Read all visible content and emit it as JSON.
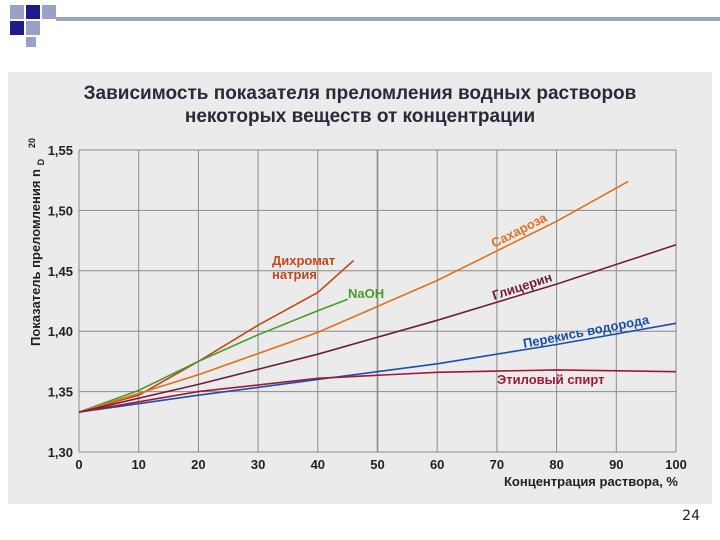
{
  "slide": {
    "page_number": "24"
  },
  "colors": {
    "deco_blue": "#1c1c8c",
    "deco_light": "#9aa0c8",
    "panel": "#ebebeb",
    "grid": "#8a8a8a"
  },
  "chart_data": {
    "type": "line",
    "title_line1": "Зависимость показателя преломления водных растворов",
    "title_line2": "некоторых веществ от концентрации",
    "xlabel": "Концентрация раствора, %",
    "ylabel": "Показатель преломления n",
    "ylabel_sup": "20",
    "ylabel_sub": "D",
    "xlim": [
      0,
      100
    ],
    "ylim": [
      1.3,
      1.55
    ],
    "xticks": [
      "0",
      "10",
      "20",
      "30",
      "40",
      "50",
      "60",
      "70",
      "80",
      "90",
      "100"
    ],
    "yticks": [
      "1,30",
      "1,35",
      "1,40",
      "1,45",
      "1,50",
      "1,55"
    ],
    "grid": true,
    "series": [
      {
        "name": "Дихромат натрия",
        "label_lines": [
          "Дихромат",
          "натрия"
        ],
        "color": "#c2461c",
        "points": [
          [
            0,
            1.333
          ],
          [
            10,
            1.347
          ],
          [
            20,
            1.375
          ],
          [
            30,
            1.405
          ],
          [
            40,
            1.432
          ],
          [
            46,
            1.4585
          ]
        ]
      },
      {
        "name": "NaOH",
        "label_lines": [
          "NaOH"
        ],
        "color": "#4a9a2a",
        "points": [
          [
            0,
            1.333
          ],
          [
            10,
            1.351
          ],
          [
            20,
            1.375
          ],
          [
            30,
            1.397
          ],
          [
            40,
            1.417
          ],
          [
            45,
            1.4265
          ]
        ]
      },
      {
        "name": "Сахароза",
        "label_lines": [
          "Сахароза"
        ],
        "color": "#e0701a",
        "points": [
          [
            0,
            1.333
          ],
          [
            20,
            1.364
          ],
          [
            40,
            1.399
          ],
          [
            60,
            1.442
          ],
          [
            80,
            1.491
          ],
          [
            92,
            1.524
          ]
        ]
      },
      {
        "name": "Глицерин",
        "label_lines": [
          "Глицерин"
        ],
        "color": "#6e1e3a",
        "points": [
          [
            0,
            1.333
          ],
          [
            20,
            1.356
          ],
          [
            40,
            1.381
          ],
          [
            60,
            1.409
          ],
          [
            80,
            1.439
          ],
          [
            100,
            1.4715
          ]
        ]
      },
      {
        "name": "Перекись водорода",
        "label_lines": [
          "Перекись водорода"
        ],
        "color": "#1a4faa",
        "points": [
          [
            0,
            1.333
          ],
          [
            20,
            1.347
          ],
          [
            40,
            1.36
          ],
          [
            60,
            1.373
          ],
          [
            80,
            1.389
          ],
          [
            100,
            1.4065
          ]
        ]
      },
      {
        "name": "Этиловый спирт",
        "label_lines": [
          "Этиловый спирт"
        ],
        "color": "#9c1a3a",
        "points": [
          [
            0,
            1.333
          ],
          [
            20,
            1.35
          ],
          [
            40,
            1.361
          ],
          [
            60,
            1.366
          ],
          [
            80,
            1.368
          ],
          [
            100,
            1.3665
          ]
        ]
      }
    ]
  }
}
